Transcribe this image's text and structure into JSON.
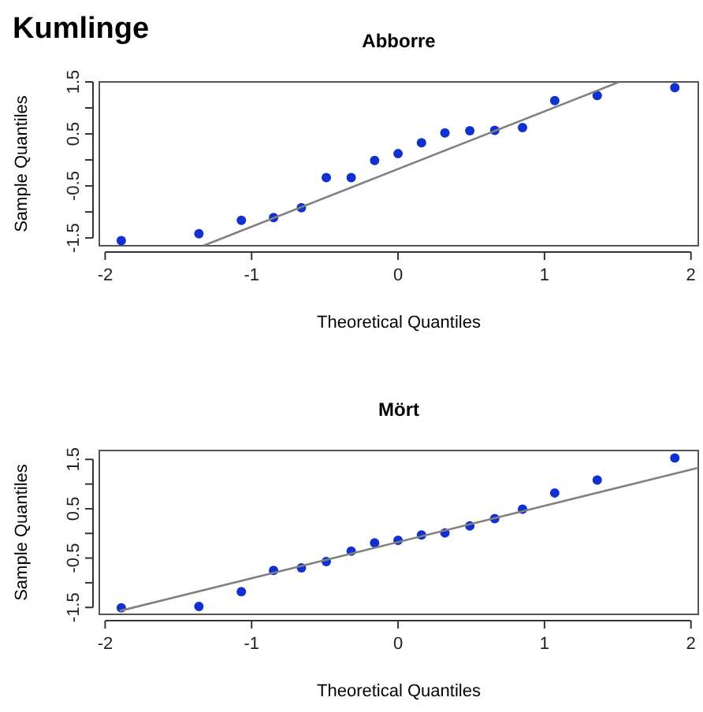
{
  "chart_data": [
    {
      "type": "scatter",
      "title": "Abborre",
      "annotations": [
        "Kumlinge"
      ],
      "xlabel": "Theoretical Quantiles",
      "ylabel": "Sample Quantiles",
      "xlim": [
        -2.04,
        2.05
      ],
      "ylim": [
        -1.65,
        1.5
      ],
      "xticks": [
        -2,
        -1,
        0,
        1,
        2
      ],
      "yticks": [
        -1.5,
        {
          "value": -1,
          "label": null
        },
        -0.5,
        {
          "value": 0,
          "label": null
        },
        0.5,
        {
          "value": 1,
          "label": null
        },
        1.5
      ],
      "grid": false,
      "marker": "circle",
      "series": [
        {
          "color": "#1030d0",
          "x": [
            -1.89,
            -1.36,
            -1.07,
            -0.85,
            -0.66,
            -0.49,
            -0.32,
            -0.16,
            0,
            0.16,
            0.32,
            0.49,
            0.66,
            0.85,
            1.07,
            1.36,
            1.89
          ],
          "values": [
            -1.55,
            -1.42,
            -1.16,
            -1.11,
            -0.92,
            -0.34,
            -0.34,
            -0.01,
            0.12,
            0.33,
            0.52,
            0.56,
            0.57,
            0.62,
            1.14,
            1.24,
            1.39
          ]
        },
        {
          "type": "line",
          "color": "#808080",
          "marker": "none",
          "x": [
            -1.33,
            1.51
          ],
          "values": [
            -1.65,
            1.5
          ]
        }
      ]
    },
    {
      "type": "scatter",
      "title": "Mört",
      "xlabel": "Theoretical Quantiles",
      "ylabel": "Sample Quantiles",
      "xlim": [
        -2.04,
        2.05
      ],
      "ylim": [
        -1.64,
        1.68
      ],
      "xticks": [
        -2,
        -1,
        0,
        1,
        2
      ],
      "yticks": [
        -1.5,
        {
          "value": -1,
          "label": null
        },
        -0.5,
        {
          "value": 0,
          "label": null
        },
        0.5,
        {
          "value": 1,
          "label": null
        },
        1.5
      ],
      "grid": false,
      "marker": "circle",
      "series": [
        {
          "color": "#1030d0",
          "x": [
            -1.89,
            -1.36,
            -1.07,
            -0.85,
            -0.66,
            -0.49,
            -0.32,
            -0.16,
            0,
            0.16,
            0.32,
            0.49,
            0.66,
            0.85,
            1.07,
            1.36,
            1.89
          ],
          "values": [
            -1.51,
            -1.48,
            -1.18,
            -0.75,
            -0.7,
            -0.57,
            -0.36,
            -0.19,
            -0.14,
            -0.03,
            0.01,
            0.15,
            0.3,
            0.49,
            0.82,
            1.08,
            1.53
          ]
        },
        {
          "type": "line",
          "color": "#808080",
          "marker": "none",
          "x": [
            -1.9,
            2.05
          ],
          "values": [
            -1.57,
            1.33
          ]
        }
      ]
    }
  ]
}
